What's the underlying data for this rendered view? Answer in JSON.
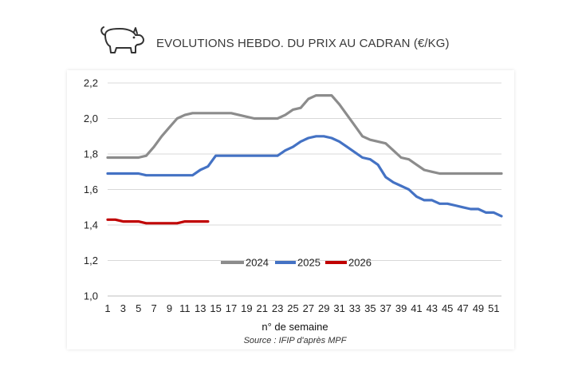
{
  "header": {
    "title": "EVOLUTIONS HEBDO. DU PRIX AU CADRAN (€/KG)",
    "icon": "pig-icon"
  },
  "chart_data": {
    "type": "line",
    "title": "EVOLUTIONS HEBDO. DU PRIX AU CADRAN (€/KG)",
    "xlabel": "n° de semaine",
    "ylabel": "",
    "source": "Source : IFIP d'après MPF",
    "ylim": [
      1.0,
      2.2
    ],
    "yticks": [
      "1,0",
      "1,2",
      "1,4",
      "1,6",
      "1,8",
      "2,0",
      "2,2"
    ],
    "xlim": [
      1,
      52
    ],
    "xticks": [
      "1",
      "3",
      "5",
      "7",
      "9",
      "11",
      "13",
      "15",
      "17",
      "19",
      "21",
      "23",
      "25",
      "27",
      "29",
      "31",
      "33",
      "35",
      "37",
      "39",
      "41",
      "43",
      "45",
      "47",
      "49",
      "51"
    ],
    "grid": true,
    "legend": "center",
    "series": [
      {
        "name": "2024",
        "color": "#8c8c8c",
        "x": [
          1,
          2,
          3,
          4,
          5,
          6,
          7,
          8,
          9,
          10,
          11,
          12,
          13,
          14,
          15,
          16,
          17,
          18,
          19,
          20,
          21,
          22,
          23,
          24,
          25,
          26,
          27,
          28,
          29,
          30,
          31,
          32,
          33,
          34,
          35,
          36,
          37,
          38,
          39,
          40,
          41,
          42,
          43,
          44,
          45,
          46,
          47,
          48,
          49,
          50,
          51,
          52
        ],
        "values": [
          1.78,
          1.78,
          1.78,
          1.78,
          1.78,
          1.79,
          1.84,
          1.9,
          1.95,
          2.0,
          2.02,
          2.03,
          2.03,
          2.03,
          2.03,
          2.03,
          2.03,
          2.02,
          2.01,
          2.0,
          2.0,
          2.0,
          2.0,
          2.02,
          2.05,
          2.06,
          2.11,
          2.13,
          2.13,
          2.13,
          2.08,
          2.02,
          1.96,
          1.9,
          1.88,
          1.87,
          1.86,
          1.82,
          1.78,
          1.77,
          1.74,
          1.71,
          1.7,
          1.69,
          1.69,
          1.69,
          1.69,
          1.69,
          1.69,
          1.69,
          1.69,
          1.69
        ]
      },
      {
        "name": "2025",
        "color": "#4472c4",
        "x": [
          1,
          2,
          3,
          4,
          5,
          6,
          7,
          8,
          9,
          10,
          11,
          12,
          13,
          14,
          15,
          16,
          17,
          18,
          19,
          20,
          21,
          22,
          23,
          24,
          25,
          26,
          27,
          28,
          29,
          30,
          31,
          32,
          33,
          34,
          35,
          36,
          37,
          38,
          39,
          40,
          41,
          42,
          43,
          44,
          45,
          46,
          47,
          48,
          49,
          50,
          51,
          52
        ],
        "values": [
          1.69,
          1.69,
          1.69,
          1.69,
          1.69,
          1.68,
          1.68,
          1.68,
          1.68,
          1.68,
          1.68,
          1.68,
          1.71,
          1.73,
          1.79,
          1.79,
          1.79,
          1.79,
          1.79,
          1.79,
          1.79,
          1.79,
          1.79,
          1.82,
          1.84,
          1.87,
          1.89,
          1.9,
          1.9,
          1.89,
          1.87,
          1.84,
          1.81,
          1.78,
          1.77,
          1.74,
          1.67,
          1.64,
          1.62,
          1.6,
          1.56,
          1.54,
          1.54,
          1.52,
          1.52,
          1.51,
          1.5,
          1.49,
          1.49,
          1.47,
          1.47,
          1.45
        ]
      },
      {
        "name": "2026",
        "color": "#c00000",
        "x": [
          1,
          2,
          3,
          4,
          5,
          6,
          7,
          8,
          9,
          10,
          11,
          12,
          13,
          14
        ],
        "values": [
          1.43,
          1.43,
          1.42,
          1.42,
          1.42,
          1.41,
          1.41,
          1.41,
          1.41,
          1.41,
          1.42,
          1.42,
          1.42,
          1.42
        ]
      }
    ]
  }
}
